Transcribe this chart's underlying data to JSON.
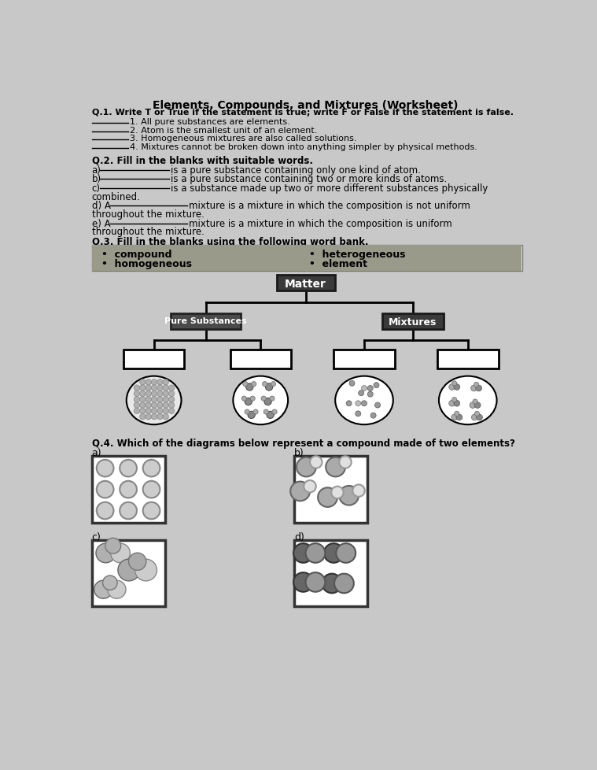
{
  "title": "Elements, Compounds, and Mixtures (Worksheet)",
  "bg_color": "#c8c8c8",
  "q1_header": "Q.1. Write T or True if the statement is true; write F or False if the statement is false.",
  "q1_items": [
    "1. All pure substances are elements.",
    "2. Atom is the smallest unit of an element.",
    "3. Homogeneous mixtures are also called solutions.",
    "4. Mixtures cannot be broken down into anything simpler by physical methods."
  ],
  "q2_header": "Q.2. Fill in the blanks with suitable words.",
  "q3_header": "Q.3. Fill in the blanks using the following word bank.",
  "matter_label": "Matter",
  "pure_label": "Pure Substances",
  "mixture_label": "Mixtures",
  "q4_header": "Q.4. Which of the diagrams below represent a compound made of two elements?"
}
